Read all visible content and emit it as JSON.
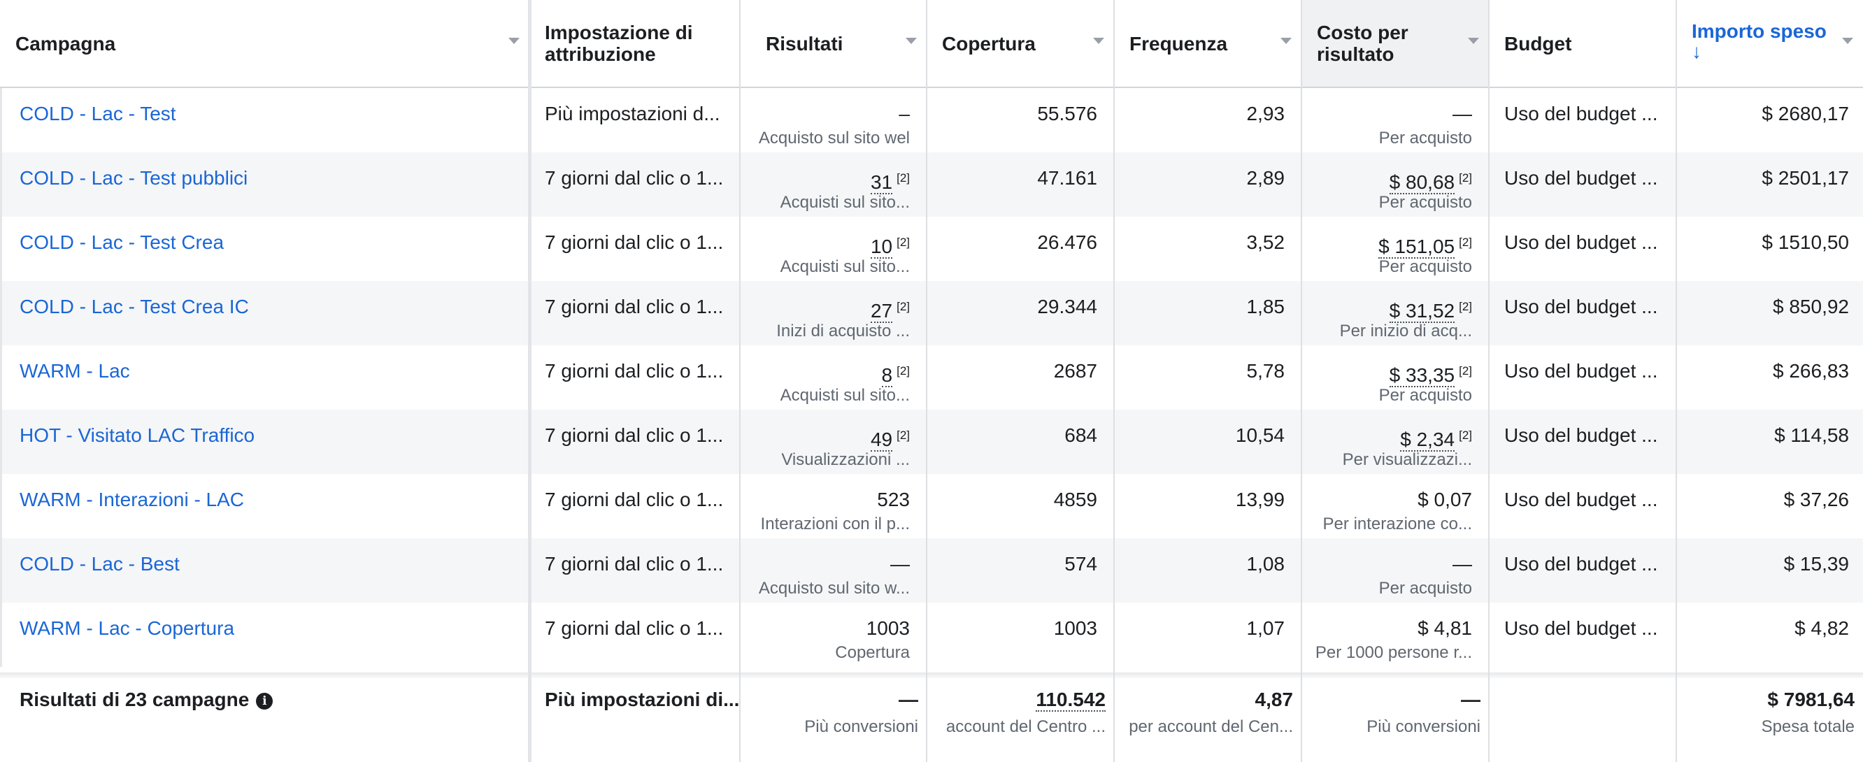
{
  "columns": {
    "campaign": "Campagna",
    "attribution": "Impostazione di attribuzione",
    "results": "Risultati",
    "reach": "Copertura",
    "frequency": "Frequenza",
    "cost": "Costo per risultato",
    "budget": "Budget",
    "spent": "Importo speso",
    "spent_sort": "↓"
  },
  "rows": [
    {
      "campaign": "COLD - Lac - Test",
      "attribution": "Più impostazioni d...",
      "results": "–",
      "results_fn": "",
      "results_sub": "Acquisto sul sito wel",
      "reach": "55.576",
      "frequency": "2,93",
      "cost": "—",
      "cost_fn": "",
      "cost_sub": "Per acquisto",
      "budget": "Uso del budget ...",
      "spent": "$ 2680,17"
    },
    {
      "campaign": "COLD - Lac - Test pubblici",
      "attribution": "7 giorni dal clic o 1...",
      "results": "31",
      "results_fn": "[2]",
      "results_sub": "Acquisti sul sito...",
      "reach": "47.161",
      "frequency": "2,89",
      "cost": "$ 80,68",
      "cost_fn": "[2]",
      "cost_sub": "Per acquisto",
      "budget": "Uso del budget ...",
      "spent": "$ 2501,17"
    },
    {
      "campaign": "COLD - Lac - Test Crea",
      "attribution": "7 giorni dal clic o 1...",
      "results": "10",
      "results_fn": "[2]",
      "results_sub": "Acquisti sul sito...",
      "reach": "26.476",
      "frequency": "3,52",
      "cost": "$ 151,05",
      "cost_fn": "[2]",
      "cost_sub": "Per acquisto",
      "budget": "Uso del budget ...",
      "spent": "$ 1510,50"
    },
    {
      "campaign": "COLD - Lac - Test Crea IC",
      "attribution": "7 giorni dal clic o 1...",
      "results": "27",
      "results_fn": "[2]",
      "results_sub": "Inizi di acquisto ...",
      "reach": "29.344",
      "frequency": "1,85",
      "cost": "$ 31,52",
      "cost_fn": "[2]",
      "cost_sub": "Per inizio di acq...",
      "budget": "Uso del budget ...",
      "spent": "$ 850,92"
    },
    {
      "campaign": "WARM - Lac",
      "attribution": "7 giorni dal clic o 1...",
      "results": "8",
      "results_fn": "[2]",
      "results_sub": "Acquisti sul sito...",
      "reach": "2687",
      "frequency": "5,78",
      "cost": "$ 33,35",
      "cost_fn": "[2]",
      "cost_sub": "Per acquisto",
      "budget": "Uso del budget ...",
      "spent": "$ 266,83"
    },
    {
      "campaign": "HOT - Visitato LAC Traffico",
      "attribution": "7 giorni dal clic o 1...",
      "results": "49",
      "results_fn": "[2]",
      "results_sub": "Visualizzazioni ...",
      "reach": "684",
      "frequency": "10,54",
      "cost": "$ 2,34",
      "cost_fn": "[2]",
      "cost_sub": "Per visualizzazi...",
      "budget": "Uso del budget ...",
      "spent": "$ 114,58"
    },
    {
      "campaign": "WARM - Interazioni - LAC",
      "attribution": "7 giorni dal clic o 1...",
      "results": "523",
      "results_fn": "",
      "results_sub": "Interazioni con il p...",
      "reach": "4859",
      "frequency": "13,99",
      "cost": "$ 0,07",
      "cost_fn": "",
      "cost_sub": "Per interazione co...",
      "budget": "Uso del budget ...",
      "spent": "$ 37,26"
    },
    {
      "campaign": "COLD - Lac - Best",
      "attribution": "7 giorni dal clic o 1...",
      "results": "—",
      "results_fn": "",
      "results_sub": "Acquisto sul sito w...",
      "reach": "574",
      "frequency": "1,08",
      "cost": "—",
      "cost_fn": "",
      "cost_sub": "Per acquisto",
      "budget": "Uso del budget ...",
      "spent": "$ 15,39"
    },
    {
      "campaign": "WARM - Lac - Copertura",
      "attribution": "7 giorni dal clic o 1...",
      "results": "1003",
      "results_fn": "",
      "results_sub": "Copertura",
      "reach": "1003",
      "frequency": "1,07",
      "cost": "$ 4,81",
      "cost_fn": "",
      "cost_sub": "Per 1000 persone r...",
      "budget": "Uso del budget ...",
      "spent": "$ 4,82"
    }
  ],
  "totals": {
    "label": "Risultati di 23 campagne",
    "info_icon": "i",
    "attribution": "Più impostazioni di...",
    "results": "—",
    "results_sub": "Più conversioni",
    "reach": "110.542",
    "reach_sub": "account del Centro ...",
    "frequency": "4,87",
    "frequency_sub": "per account del Cen...",
    "cost": "—",
    "cost_sub": "Più conversioni",
    "spent": "$ 7981,64",
    "spent_sub": "Spesa totale"
  },
  "colors": {
    "link": "#1a66d6",
    "alt_row": "#f5f6f7",
    "active_header": "#f0f1f3"
  }
}
